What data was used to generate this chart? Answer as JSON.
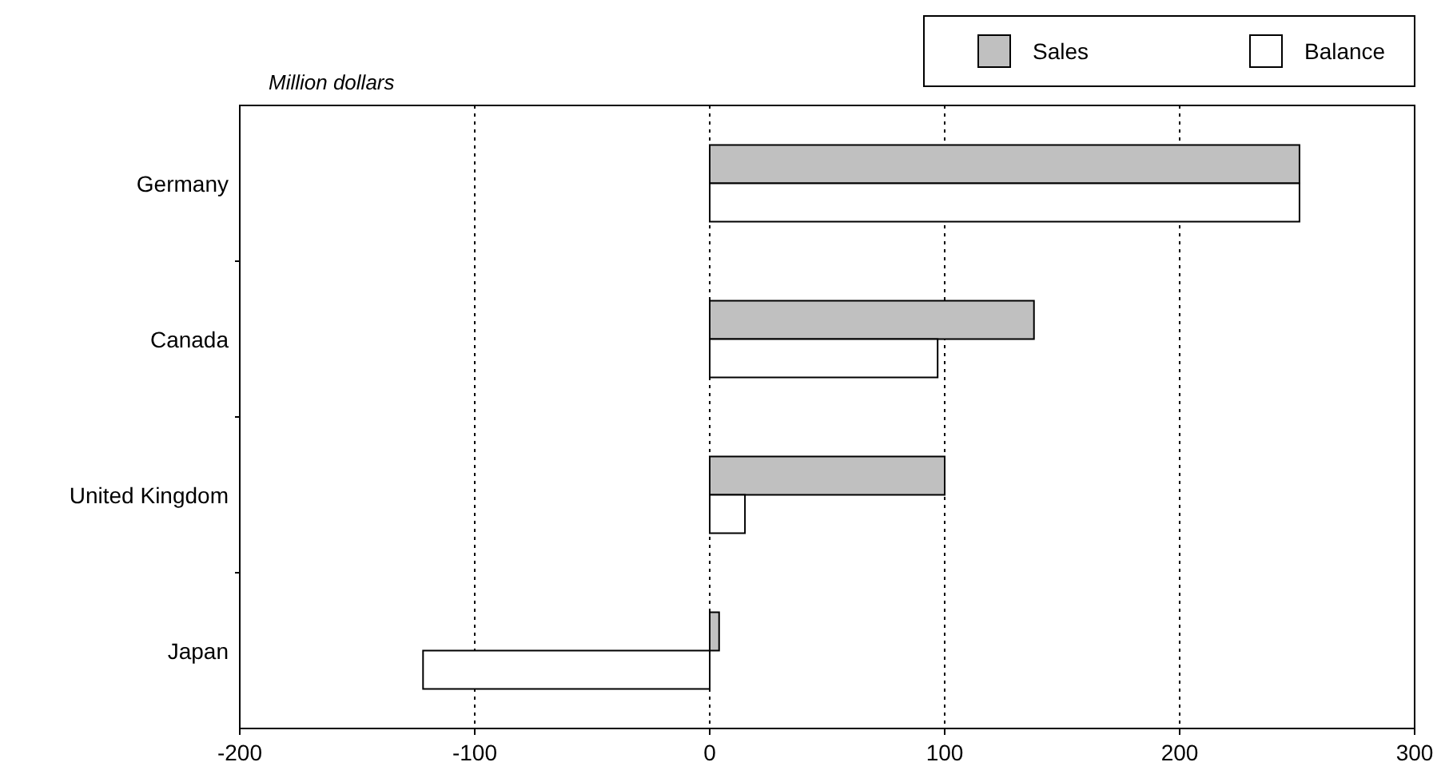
{
  "chart_data": {
    "type": "bar",
    "orientation": "horizontal",
    "xlabel": "Million dollars",
    "categories": [
      "Germany",
      "Canada",
      "United Kingdom",
      "Japan"
    ],
    "series": [
      {
        "name": "Sales",
        "color": "#c0c0c0",
        "values": [
          251,
          138,
          100,
          4
        ]
      },
      {
        "name": "Balance",
        "color": "#ffffff",
        "values": [
          251,
          97,
          15,
          -122
        ]
      }
    ],
    "xlim": [
      -200,
      300
    ],
    "xticks": [
      -200,
      -100,
      0,
      100,
      200,
      300
    ],
    "grid": "x",
    "legend": "top right"
  }
}
